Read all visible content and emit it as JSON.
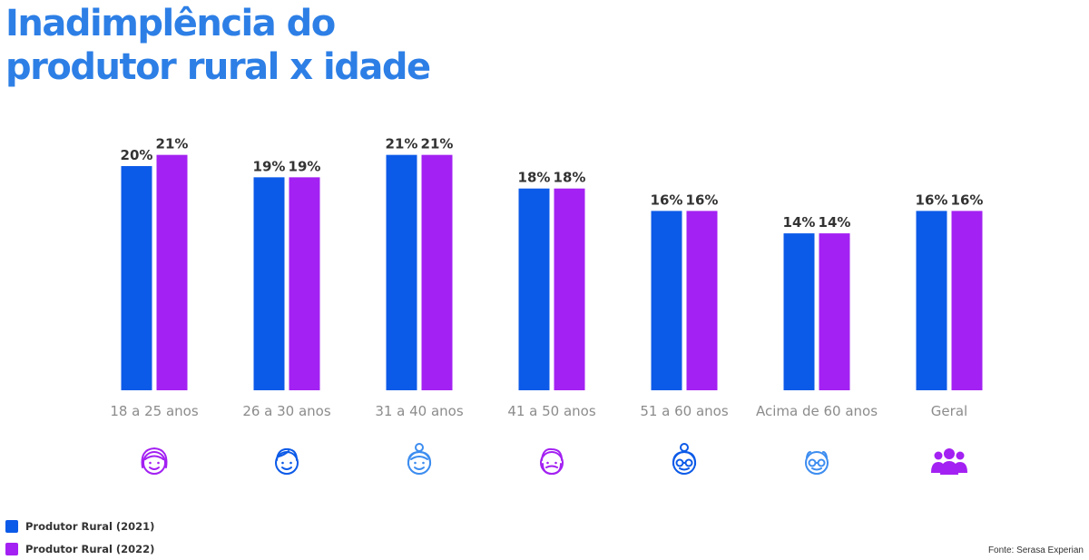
{
  "title_line1": "Inadimplência do",
  "title_line2": "produtor rural x idade",
  "source": "Fonte: Serasa Experian",
  "colors": {
    "title": "#2d7fe6",
    "series2021": "#0c5ae8",
    "series2022": "#a321f2",
    "axis_label": "#8c8c8c",
    "value_label": "#333333"
  },
  "chart_data": {
    "type": "bar",
    "title": "Inadimplência do produtor rural x idade",
    "categories": [
      "18 a 25 anos",
      "26 a 30 anos",
      "31 a 40 anos",
      "41 a 50 anos",
      "51 a 60 anos",
      "Acima de 60 anos",
      "Geral"
    ],
    "series": [
      {
        "name": "Produtor Rural (2021)",
        "values": [
          20,
          19,
          21,
          18,
          16,
          14,
          16
        ],
        "labels": [
          "20%",
          "19%",
          "21%",
          "18%",
          "16%",
          "14%",
          "16%"
        ],
        "color": "#0c5ae8"
      },
      {
        "name": "Produtor Rural (2022)",
        "values": [
          21,
          19,
          21,
          18,
          16,
          14,
          16
        ],
        "labels": [
          "21%",
          "19%",
          "21%",
          "18%",
          "16%",
          "14%",
          "16%"
        ],
        "color": "#a321f2"
      }
    ],
    "ylim": [
      0,
      21
    ],
    "grid": false,
    "legend_position": "bottom-left",
    "icons": [
      "young-woman-icon",
      "young-man-icon",
      "woman-with-bun-icon",
      "bearded-man-icon",
      "grandmother-icon",
      "grandfather-icon",
      "group-icon"
    ]
  }
}
